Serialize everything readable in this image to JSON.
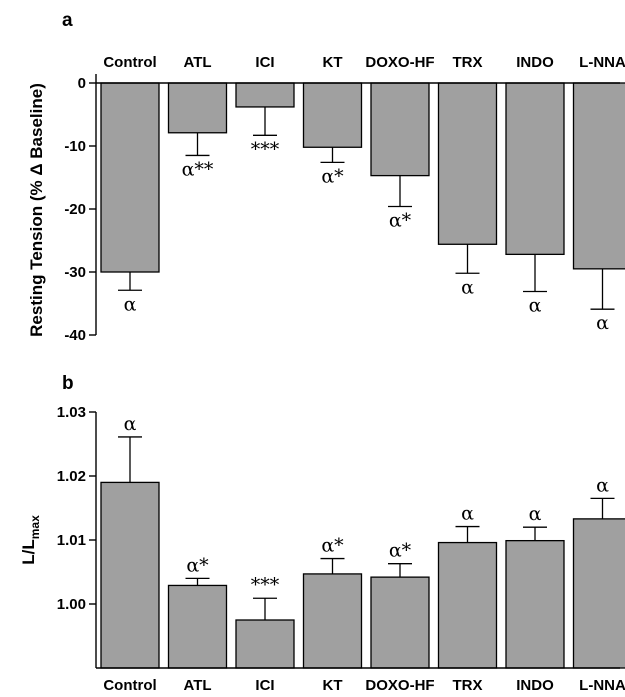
{
  "colors": {
    "bar_fill": "#a0a0a0",
    "bar_stroke": "#000000",
    "axis": "#000000"
  },
  "panels": {
    "a": {
      "letter": "a"
    },
    "b": {
      "letter": "b"
    }
  },
  "chart_data": [
    {
      "type": "bar",
      "panel": "a",
      "categories": [
        "Control",
        "ATL",
        "ICI",
        "KT",
        "DOXO-HF",
        "TRX",
        "INDO",
        "L-NNA"
      ],
      "category_labels_position": "top",
      "ylabel": "Resting Tension (% Δ Baseline)",
      "ylim": [
        -40,
        0
      ],
      "yticks": [
        0,
        -10,
        -20,
        -30,
        -40
      ],
      "ytick_labels": [
        "0",
        "-10",
        "-20",
        "-30",
        "-40"
      ],
      "values": [
        -30.0,
        -7.9,
        -3.8,
        -10.2,
        -14.7,
        -25.6,
        -27.2,
        -29.5
      ],
      "errors": [
        2.9,
        3.6,
        4.5,
        2.4,
        4.9,
        4.6,
        5.9,
        6.4
      ],
      "error_direction": "down",
      "annotations": [
        "α",
        "α**",
        "***",
        "α*",
        "α*",
        "α",
        "α",
        "α"
      ]
    },
    {
      "type": "bar",
      "panel": "b",
      "categories": [
        "Control",
        "ATL",
        "ICI",
        "KT",
        "DOXO-HF",
        "TRX",
        "INDO",
        "L-NNA"
      ],
      "category_labels_position": "bottom",
      "ylabel_main": "L/L",
      "ylabel_sub": "max",
      "baseline": 0.99,
      "ylim": [
        0.99,
        1.03
      ],
      "yticks": [
        1.0,
        1.01,
        1.02,
        1.03
      ],
      "ytick_labels": [
        "1.00",
        "1.01",
        "1.02",
        "1.03"
      ],
      "values": [
        1.019,
        1.0029,
        0.9975,
        1.0047,
        1.0042,
        1.0096,
        1.0099,
        1.0133
      ],
      "errors": [
        0.0071,
        0.0011,
        0.0034,
        0.0024,
        0.0021,
        0.0025,
        0.0021,
        0.0032
      ],
      "error_direction": "up",
      "annotations": [
        "α",
        "α*",
        "***",
        "α*",
        "α*",
        "α",
        "α",
        "α"
      ]
    }
  ]
}
